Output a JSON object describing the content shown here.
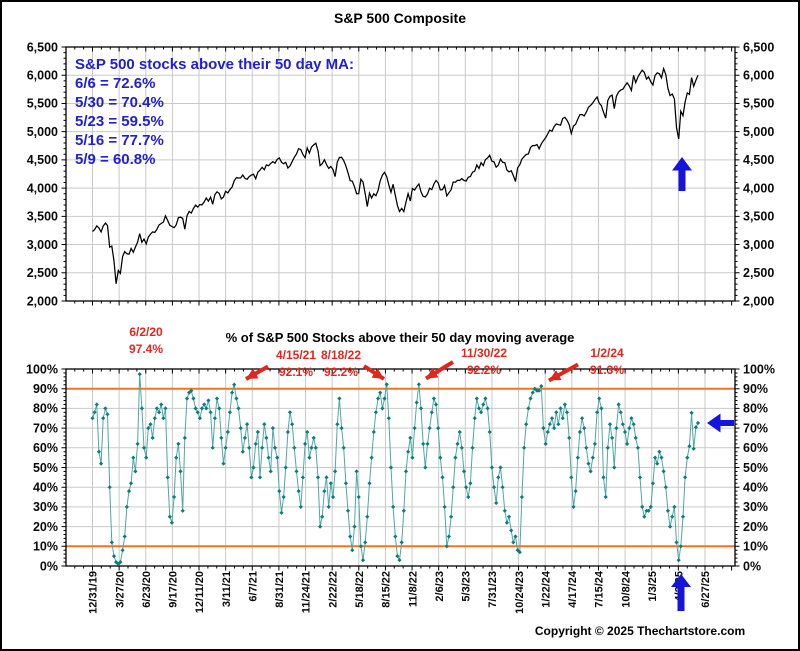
{
  "header": {
    "title": "S&P 500 Composite"
  },
  "footer": {
    "copyright": "Copyright © 2025 Thechartstore.com"
  },
  "above_ma_box": {
    "title": "S&P 500 stocks above their 50 day MA:",
    "lines": [
      "6/6 = 72.6%",
      "5/30 = 70.4%",
      "5/23 = 59.5%",
      "5/16 = 77.7%",
      "5/9 = 60.8%"
    ]
  },
  "callouts": [
    {
      "date": "6/2/20",
      "value": "97.4%"
    },
    {
      "date": "4/15/21",
      "value": "92.1%"
    },
    {
      "date": "8/18/22",
      "value": "92.2%"
    },
    {
      "date": "11/30/22",
      "value": "92.2%"
    },
    {
      "date": "1/2/24",
      "value": "91.3%"
    }
  ],
  "colors": {
    "blue_text": "#2121cc",
    "arrow_blue": "#1414dd",
    "red": "#e3261d",
    "orange": "#f3761d",
    "teal": "#0c7d7d",
    "teal_line": "#4fa7a7",
    "grid": "#c9c9c9",
    "price_line": "#000000"
  },
  "x_axis": {
    "tick_labels": [
      "12/31/19",
      "3/27/20",
      "6/23/20",
      "9/17/20",
      "12/11/20",
      "3/11/21",
      "6/7/21",
      "8/31/21",
      "11/24/21",
      "2/22/22",
      "5/18/22",
      "8/15/22",
      "11/8/22",
      "2/6/23",
      "5/3/23",
      "7/31/23",
      "10/24/23",
      "1/22/24",
      "4/17/24",
      "7/15/24",
      "10/8/24",
      "1/3/25",
      "4/2/25",
      "6/27/25"
    ]
  },
  "chart_data": [
    {
      "type": "line",
      "panel": "top",
      "title": "S&P 500 Composite",
      "ylim": [
        2000,
        6500
      ],
      "ytick_step": 500,
      "ytick_labels": [
        "2,000",
        "2,500",
        "3,000",
        "3,500",
        "4,000",
        "4,500",
        "5,000",
        "5,500",
        "6,000",
        "6,500"
      ],
      "grid": true,
      "x_range": [
        "12/31/19",
        "6/6/25"
      ],
      "series": [
        {
          "name": "S&P 500 Composite",
          "values": [
            3231,
            3265,
            3330,
            3295,
            3225,
            3328,
            3380,
            3338,
            2954,
            2972,
            2711,
            2305,
            2541,
            2489,
            2790,
            2875,
            2837,
            2830,
            2930,
            2864,
            2955,
            3044,
            3194,
            3041,
            3098,
            3009,
            3130,
            3185,
            3225,
            3216,
            3271,
            3348,
            3373,
            3397,
            3508,
            3427,
            3341,
            3319,
            3298,
            3348,
            3477,
            3484,
            3465,
            3270,
            3509,
            3585,
            3558,
            3638,
            3699,
            3663,
            3709,
            3703,
            3756,
            3825,
            3768,
            3841,
            3714,
            3887,
            3935,
            3907,
            3811,
            3842,
            3943,
            3913,
            3975,
            4020,
            4129,
            4185,
            4180,
            4181,
            4233,
            4174,
            4156,
            4204,
            4230,
            4247,
            4166,
            4281,
            4320,
            4369,
            4327,
            4412,
            4395,
            4437,
            4468,
            4442,
            4510,
            4535,
            4459,
            4433,
            4455,
            4357,
            4391,
            4471,
            4545,
            4605,
            4698,
            4683,
            4595,
            4538,
            4712,
            4621,
            4726,
            4766,
            4796,
            4663,
            4398,
            4432,
            4501,
            4419,
            4349,
            4385,
            4329,
            4204,
            4463,
            4543,
            4546,
            4488,
            4393,
            4272,
            4132,
            4123,
            4024,
            3901,
            3902,
            4158,
            4109,
            3901,
            3675,
            3912,
            3825,
            3900,
            3863,
            3962,
            4130,
            4228,
            4280,
            4204,
            4058,
            3925,
            4067,
            3873,
            3693,
            3586,
            3640,
            3583,
            3753,
            3902,
            3771,
            3993,
            3965,
            4026,
            4072,
            3934,
            3852,
            3845,
            3895,
            3999,
            3973,
            4071,
            4136,
            4090,
            3970,
            3971,
            4046,
            3862,
            3917,
            3971,
            4109,
            4105,
            4138,
            4134,
            4169,
            4136,
            4124,
            4192,
            4206,
            4282,
            4299,
            4410,
            4348,
            4450,
            4399,
            4505,
            4536,
            4582,
            4478,
            4464,
            4370,
            4406,
            4516,
            4458,
            4450,
            4320,
            4288,
            4308,
            4224,
            4117,
            4358,
            4415,
            4514,
            4559,
            4595,
            4604,
            4719,
            4755,
            4754,
            4770,
            4697,
            4784,
            4840,
            4891,
            4959,
            5027,
            5006,
            5089,
            5137,
            5124,
            5117,
            5234,
            5254,
            5204,
            5123,
            4967,
            5100,
            5128,
            5223,
            5303,
            5305,
            5278,
            5347,
            5432,
            5465,
            5509,
            5567,
            5615,
            5505,
            5460,
            5344,
            5240,
            5554,
            5626,
            5648,
            5408,
            5626,
            5702,
            5738,
            5751,
            5815,
            5865,
            5809,
            5729,
            5996,
            5870,
            5969,
            6032,
            6090,
            6051,
            5931,
            5971,
            5882,
            5827,
            5996,
            6041,
            6026,
            5954,
            6115,
            6013,
            5770,
            5639,
            5668,
            5581,
            5074,
            4870,
            5363,
            5283,
            5525,
            5687,
            5660,
            5958,
            5803,
            5912,
            6000
          ]
        }
      ]
    },
    {
      "type": "line",
      "panel": "bottom",
      "title": "% of S&P 500 Stocks above their 50 day moving average",
      "ylim": [
        0,
        100
      ],
      "ytick_step": 10,
      "ytick_labels": [
        "0%",
        "10%",
        "20%",
        "30%",
        "40%",
        "50%",
        "60%",
        "70%",
        "80%",
        "90%",
        "100%"
      ],
      "grid": true,
      "threshold_lines": [
        {
          "value": 90
        },
        {
          "value": 10
        }
      ],
      "peak_annotations": [
        {
          "date": "6/2/20",
          "value": 97.4
        },
        {
          "date": "4/15/21",
          "value": 92.1
        },
        {
          "date": "8/18/22",
          "value": 92.2
        },
        {
          "date": "11/30/22",
          "value": 92.2
        },
        {
          "date": "1/2/24",
          "value": 91.3
        }
      ],
      "latest_readings": [
        {
          "date": "6/6",
          "value": 72.6
        },
        {
          "date": "5/30",
          "value": 70.4
        },
        {
          "date": "5/23",
          "value": 59.5
        },
        {
          "date": "5/16",
          "value": 77.7
        },
        {
          "date": "5/9",
          "value": 60.8
        }
      ],
      "series": [
        {
          "name": "% of S&P 500 stocks above 50 day MA",
          "marker": "diamond",
          "values": [
            75,
            78,
            82,
            58,
            52,
            75,
            80,
            77,
            40,
            12,
            5,
            2,
            1,
            2,
            8,
            15,
            30,
            38,
            42,
            55,
            48,
            62,
            97.4,
            80,
            60,
            55,
            70,
            72,
            65,
            75,
            80,
            78,
            82,
            75,
            80,
            45,
            25,
            22,
            35,
            55,
            62,
            48,
            28,
            65,
            85,
            88,
            89,
            85,
            80,
            78,
            75,
            80,
            82,
            80,
            84,
            78,
            60,
            75,
            85,
            80,
            65,
            52,
            60,
            68,
            78,
            88,
            92.1,
            85,
            80,
            70,
            58,
            65,
            72,
            60,
            45,
            50,
            62,
            68,
            45,
            60,
            72,
            65,
            55,
            48,
            70,
            60,
            55,
            38,
            27,
            35,
            50,
            68,
            78,
            72,
            60,
            48,
            38,
            30,
            45,
            62,
            68,
            55,
            60,
            65,
            60,
            45,
            20,
            25,
            38,
            45,
            30,
            42,
            35,
            48,
            72,
            85,
            70,
            60,
            42,
            28,
            15,
            8,
            20,
            48,
            35,
            10,
            3,
            12,
            25,
            42,
            55,
            68,
            78,
            85,
            88,
            80,
            85,
            92.2,
            75,
            50,
            30,
            15,
            5,
            3,
            12,
            28,
            48,
            58,
            65,
            55,
            70,
            83,
            92.2,
            80,
            62,
            50,
            62,
            70,
            78,
            85,
            82,
            70,
            55,
            45,
            30,
            10,
            15,
            25,
            40,
            55,
            62,
            68,
            60,
            48,
            40,
            35,
            42,
            60,
            75,
            85,
            80,
            78,
            82,
            85,
            80,
            68,
            50,
            40,
            32,
            45,
            50,
            40,
            28,
            22,
            25,
            18,
            12,
            15,
            8,
            7,
            35,
            60,
            72,
            80,
            85,
            88,
            90,
            89,
            89,
            91.3,
            70,
            62,
            68,
            72,
            75,
            70,
            78,
            72,
            80,
            75,
            82,
            78,
            65,
            45,
            30,
            38,
            55,
            68,
            75,
            70,
            60,
            52,
            48,
            55,
            62,
            78,
            85,
            80,
            45,
            35,
            60,
            72,
            65,
            50,
            70,
            82,
            78,
            72,
            68,
            62,
            70,
            75,
            72,
            65,
            60,
            45,
            30,
            25,
            28,
            28,
            30,
            42,
            55,
            52,
            58,
            55,
            48,
            40,
            28,
            20,
            25,
            30,
            12,
            3,
            10,
            25,
            45,
            55,
            60.8,
            77.7,
            59.5,
            70.4,
            72.6
          ]
        }
      ]
    }
  ]
}
